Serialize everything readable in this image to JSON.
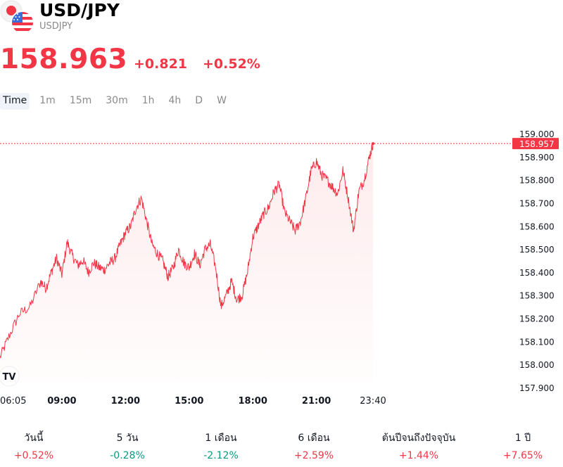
{
  "header": {
    "symbol_title": "USD/JPY",
    "symbol_code": "USDJPY",
    "flag_icons": [
      "japan-flag-icon",
      "us-flag-icon"
    ]
  },
  "quote": {
    "price": "158.963",
    "change_abs": "+0.821",
    "change_pct": "+0.52%"
  },
  "timeframes": [
    "Time",
    "1m",
    "15m",
    "30m",
    "1h",
    "4h",
    "D",
    "W"
  ],
  "active_timeframe": "Time",
  "colors": {
    "up": "#f23645",
    "down": "#089981",
    "line": "#f23645"
  },
  "chart_data": {
    "type": "area",
    "y_ticks": [
      "159.000",
      "158.900",
      "158.800",
      "158.700",
      "158.600",
      "158.500",
      "158.400",
      "158.300",
      "158.200",
      "158.100",
      "158.000",
      "157.900"
    ],
    "ylim": [
      157.9,
      159.0
    ],
    "x_ticks": [
      {
        "label": "06:05",
        "hour": 6.083,
        "bold": false
      },
      {
        "label": "09:00",
        "hour": 9,
        "bold": true
      },
      {
        "label": "12:00",
        "hour": 12,
        "bold": true
      },
      {
        "label": "15:00",
        "hour": 15,
        "bold": true
      },
      {
        "label": "18:00",
        "hour": 18,
        "bold": true
      },
      {
        "label": "21:00",
        "hour": 21,
        "bold": true
      },
      {
        "label": "23:40",
        "hour": 23.667,
        "bold": false
      }
    ],
    "last_price_label": "158.957",
    "last_price": 158.957,
    "series": [
      {
        "x": [
          6.08,
          6.5,
          7.0,
          7.5,
          8.0,
          8.25,
          8.5,
          8.75,
          9.0,
          9.25,
          9.5,
          9.75,
          10.0,
          10.25,
          10.5,
          10.75,
          11.0,
          11.25,
          11.5,
          11.75,
          12.0,
          12.25,
          12.5,
          12.75,
          13.0,
          13.25,
          13.5,
          13.75,
          14.0,
          14.25,
          14.5,
          14.75,
          15.0,
          15.25,
          15.5,
          15.75,
          16.0,
          16.25,
          16.5,
          16.75,
          17.0,
          17.25,
          17.5,
          17.75,
          18.0,
          18.25,
          18.5,
          18.75,
          19.0,
          19.25,
          19.5,
          19.75,
          20.0,
          20.25,
          20.5,
          20.75,
          21.0,
          21.25,
          21.5,
          21.75,
          22.0,
          22.25,
          22.5,
          22.75,
          23.0,
          23.25,
          23.5,
          23.67
        ],
        "y": [
          158.03,
          158.12,
          158.22,
          158.25,
          158.36,
          158.33,
          158.4,
          158.46,
          158.39,
          158.53,
          158.47,
          158.43,
          158.45,
          158.4,
          158.44,
          158.42,
          158.41,
          158.44,
          158.46,
          158.52,
          158.57,
          158.6,
          158.68,
          158.72,
          158.62,
          158.52,
          158.48,
          158.45,
          158.38,
          158.42,
          158.5,
          158.44,
          158.42,
          158.48,
          158.43,
          158.5,
          158.52,
          158.42,
          158.25,
          158.3,
          158.36,
          158.28,
          158.3,
          158.4,
          158.55,
          158.6,
          158.65,
          158.68,
          158.75,
          158.78,
          158.66,
          158.62,
          158.58,
          158.62,
          158.72,
          158.84,
          158.88,
          158.82,
          158.8,
          158.77,
          158.74,
          158.84,
          158.72,
          158.58,
          158.75,
          158.8,
          158.9,
          158.957
        ]
      }
    ]
  },
  "performance": [
    {
      "label": "วันนี้",
      "value": "+0.52%",
      "direction": "up"
    },
    {
      "label": "5 วัน",
      "value": "-0.28%",
      "direction": "down"
    },
    {
      "label": "1 เดือน",
      "value": "-2.12%",
      "direction": "down"
    },
    {
      "label": "6 เดือน",
      "value": "+2.59%",
      "direction": "up"
    },
    {
      "label": "ต้นปีจนถึงปัจจุบัน",
      "value": "+1.44%",
      "direction": "up"
    },
    {
      "label": "1 ปี",
      "value": "+7.65%",
      "direction": "up"
    }
  ]
}
